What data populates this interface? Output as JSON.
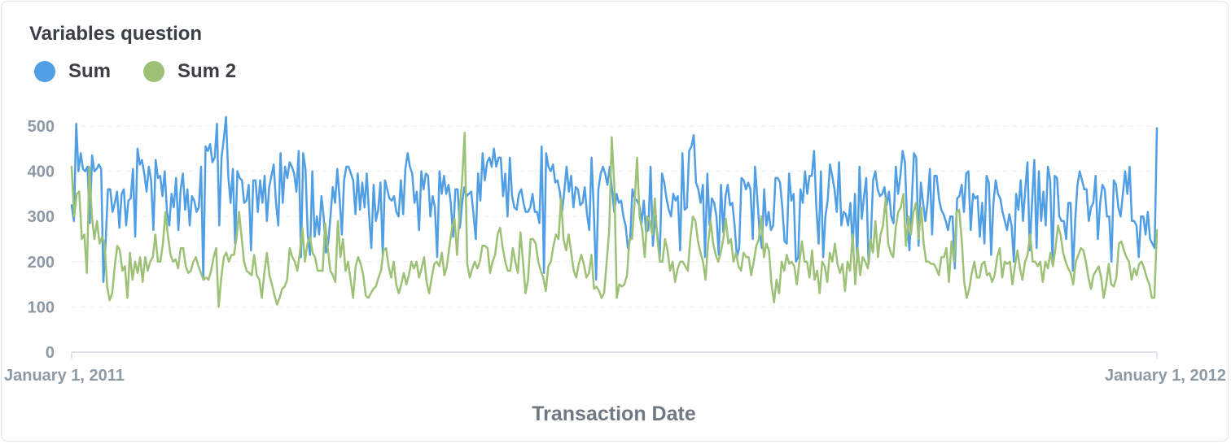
{
  "card": {
    "title": "Variables question"
  },
  "legend": [
    {
      "name": "Sum",
      "color": "#509ee3"
    },
    {
      "name": "Sum 2",
      "color": "#9cc177"
    }
  ],
  "chart_data": {
    "type": "line",
    "x_range": [
      "January 1, 2011",
      "January 1, 2012"
    ],
    "x_tick_labels": [
      "January 1, 2011",
      "January 1, 2012"
    ],
    "xlabel": "Transaction Date",
    "ylabel": "",
    "ylim": [
      0,
      500
    ],
    "y_ticks": [
      0,
      100,
      200,
      300,
      400,
      500
    ],
    "grid": "horizontal dashed",
    "legend_position": "top-left",
    "series": [
      {
        "name": "Sum",
        "color": "#509ee3",
        "values": [
          325,
          290,
          505,
          400,
          440,
          405,
          400,
          410,
          285,
          435,
          400,
          405,
          415,
          405,
          155,
          245,
          360,
          360,
          310,
          330,
          355,
          275,
          350,
          360,
          280,
          335,
          340,
          405,
          255,
          450,
          415,
          425,
          395,
          355,
          410,
          380,
          270,
          425,
          385,
          390,
          345,
          400,
          310,
          280,
          350,
          320,
          385,
          270,
          360,
          395,
          315,
          360,
          280,
          345,
          335,
          310,
          320,
          410,
          160,
          455,
          445,
          460,
          420,
          430,
          505,
          280,
          430,
          470,
          520,
          390,
          330,
          405,
          240,
          400,
          385,
          380,
          330,
          335,
          370,
          225,
          380,
          380,
          310,
          380,
          330,
          390,
          290,
          365,
          390,
          415,
          330,
          280,
          440,
          330,
          410,
          385,
          420,
          410,
          395,
          355,
          445,
          210,
          440,
          405,
          260,
          215,
          400,
          255,
          300,
          260,
          345,
          300,
          220,
          240,
          300,
          365,
          330,
          405,
          340,
          260,
          380,
          410,
          410,
          395,
          380,
          305,
          395,
          315,
          375,
          320,
          395,
          305,
          230,
          370,
          290,
          315,
          375,
          215,
          380,
          360,
          340,
          335,
          345,
          310,
          300,
          380,
          305,
          405,
          440,
          410,
          395,
          330,
          355,
          270,
          400,
          360,
          395,
          390,
          300,
          345,
          320,
          210,
          400,
          350,
          390,
          350,
          370,
          330,
          255,
          360,
          360,
          275,
          330,
          365,
          345,
          350,
          355,
          305,
          250,
          395,
          335,
          440,
          380,
          420,
          430,
          410,
          450,
          410,
          430,
          430,
          345,
          395,
          300,
          430,
          345,
          320,
          315,
          350,
          360,
          330,
          310,
          310,
          320,
          350,
          310,
          310,
          285,
          455,
          175,
          440,
          410,
          400,
          415,
          375,
          380,
          355,
          310,
          355,
          410,
          355,
          390,
          320,
          365,
          360,
          325,
          330,
          365,
          305,
          270,
          430,
          310,
          160,
          360,
          395,
          410,
          395,
          370,
          410,
          360,
          310,
          350,
          330,
          335,
          300,
          280,
          230,
          250,
          360,
          340,
          335,
          325,
          285,
          335,
          265,
          270,
          410,
          235,
          300,
          260,
          205,
          395,
          375,
          340,
          315,
          300,
          350,
          335,
          345,
          225,
          440,
          315,
          320,
          445,
          455,
          480,
          375,
          360,
          330,
          370,
          210,
          395,
          280,
          340,
          330,
          300,
          215,
          370,
          265,
          345,
          370,
          325,
          330,
          280,
          210,
          230,
          385,
          380,
          360,
          375,
          360,
          250,
          410,
          340,
          265,
          230,
          360,
          280,
          310,
          270,
          280,
          385,
          385,
          375,
          320,
          245,
          240,
          395,
          335,
          350,
          200,
          210,
          360,
          330,
          400,
          350,
          390,
          390,
          445,
          320,
          240,
          400,
          210,
          300,
          335,
          415,
          390,
          360,
          310,
          420,
          280,
          310,
          305,
          280,
          330,
          230,
          350,
          200,
          410,
          295,
          345,
          385,
          195,
          250,
          380,
          400,
          360,
          345,
          350,
          365,
          325,
          355,
          300,
          285,
          410,
          350,
          390,
          445,
          420,
          290,
          225,
          330,
          440,
          430,
          235,
          375,
          330,
          290,
          330,
          405,
          260,
          390,
          390,
          340,
          315,
          305,
          290,
          270,
          300,
          300,
          185,
          340,
          345,
          370,
          310,
          395,
          400,
          270,
          350,
          340,
          345,
          255,
          330,
          240,
          390,
          375,
          215,
          330,
          380,
          350,
          340,
          310,
          290,
          270,
          305,
          280,
          200,
          350,
          315,
          380,
          290,
          360,
          420,
          225,
          330,
          425,
          230,
          400,
          290,
          355,
          280,
          410,
          380,
          200,
          390,
          385,
          300,
          290,
          290,
          250,
          330,
          330,
          180,
          290,
          370,
          400,
          380,
          360,
          360,
          290,
          320,
          330,
          390,
          250,
          330,
          370,
          360,
          300,
          300,
          200,
          380,
          370,
          320,
          300,
          350,
          400,
          350,
          410,
          290,
          290,
          280,
          210,
          300,
          300,
          260,
          310,
          250,
          240,
          230,
          495
        ]
      },
      {
        "name": "Sum 2",
        "color": "#9cc177",
        "values": [
          410,
          300,
          350,
          355,
          250,
          260,
          175,
          410,
          300,
          250,
          290,
          240,
          255,
          240,
          145,
          115,
          130,
          190,
          235,
          225,
          180,
          190,
          120,
          220,
          160,
          200,
          175,
          210,
          155,
          210,
          180,
          200,
          210,
          260,
          200,
          200,
          240,
          310,
          255,
          215,
          200,
          205,
          185,
          230,
          230,
          190,
          175,
          180,
          200,
          210,
          190,
          175,
          160,
          165,
          160,
          180,
          210,
          230,
          100,
          165,
          210,
          220,
          200,
          215,
          215,
          250,
          310,
          255,
          200,
          180,
          175,
          170,
          215,
          170,
          160,
          120,
          175,
          220,
          170,
          150,
          125,
          105,
          120,
          140,
          145,
          160,
          230,
          210,
          200,
          180,
          220,
          275,
          200,
          240,
          255,
          220,
          210,
          180,
          180,
          180,
          285,
          230,
          180,
          170,
          155,
          290,
          210,
          250,
          180,
          200,
          160,
          120,
          190,
          210,
          195,
          170,
          125,
          120,
          130,
          140,
          145,
          165,
          180,
          225,
          230,
          190,
          165,
          200,
          150,
          130,
          150,
          175,
          150,
          170,
          200,
          185,
          200,
          165,
          185,
          210,
          155,
          130,
          165,
          195,
          200,
          190,
          220,
          170,
          190,
          235,
          275,
          295,
          215,
          310,
          380,
          485,
          195,
          165,
          185,
          200,
          185,
          200,
          235,
          235,
          230,
          175,
          200,
          215,
          260,
          275,
          230,
          200,
          180,
          180,
          230,
          200,
          175,
          265,
          200,
          130,
          160,
          250,
          250,
          240,
          200,
          180,
          165,
          135,
          190,
          200,
          235,
          260,
          250,
          340,
          250,
          225,
          260,
          220,
          180,
          165,
          195,
          215,
          195,
          165,
          175,
          215,
          140,
          145,
          135,
          120,
          130,
          200,
          270,
          475,
          370,
          120,
          150,
          145,
          150,
          170,
          250,
          250,
          330,
          430,
          300,
          270,
          210,
          300,
          290,
          260,
          340,
          250,
          200,
          200,
          250,
          225,
          180,
          200,
          155,
          185,
          200,
          200,
          190,
          180,
          250,
          300,
          290,
          245,
          220,
          200,
          160,
          240,
          290,
          240,
          215,
          200,
          220,
          250,
          295,
          240,
          250,
          200,
          220,
          190,
          180,
          220,
          210,
          210,
          170,
          200,
          235,
          250,
          300,
          210,
          240,
          225,
          150,
          110,
          160,
          130,
          200,
          180,
          215,
          195,
          200,
          190,
          150,
          200,
          245,
          200,
          200,
          165,
          225,
          160,
          180,
          130,
          200,
          190,
          155,
          220,
          200,
          240,
          195,
          175,
          195,
          135,
          200,
          180,
          260,
          150,
          230,
          170,
          210,
          200,
          185,
          250,
          220,
          290,
          210,
          260,
          280,
          340,
          240,
          220,
          210,
          275,
          310,
          320,
          350,
          235,
          300,
          260,
          310,
          330,
          250,
          320,
          240,
          200,
          200,
          195,
          195,
          185,
          170,
          210,
          210,
          230,
          155,
          245,
          200,
          310,
          315,
          250,
          155,
          120,
          140,
          175,
          200,
          165,
          165,
          195,
          200,
          170,
          175,
          155,
          170,
          210,
          230,
          165,
          200,
          195,
          200,
          150,
          190,
          225,
          185,
          160,
          200,
          215,
          260,
          200,
          200,
          190,
          200,
          155,
          200,
          185,
          220,
          190,
          230,
          280,
          260,
          220,
          200,
          185,
          175,
          150,
          200,
          215,
          230,
          225,
          200,
          165,
          140,
          170,
          180,
          190,
          165,
          120,
          150,
          195,
          150,
          145,
          165,
          240,
          245,
          225,
          210,
          200,
          160,
          185,
          170,
          195,
          200,
          185,
          165,
          150,
          120,
          120,
          270
        ]
      }
    ]
  }
}
